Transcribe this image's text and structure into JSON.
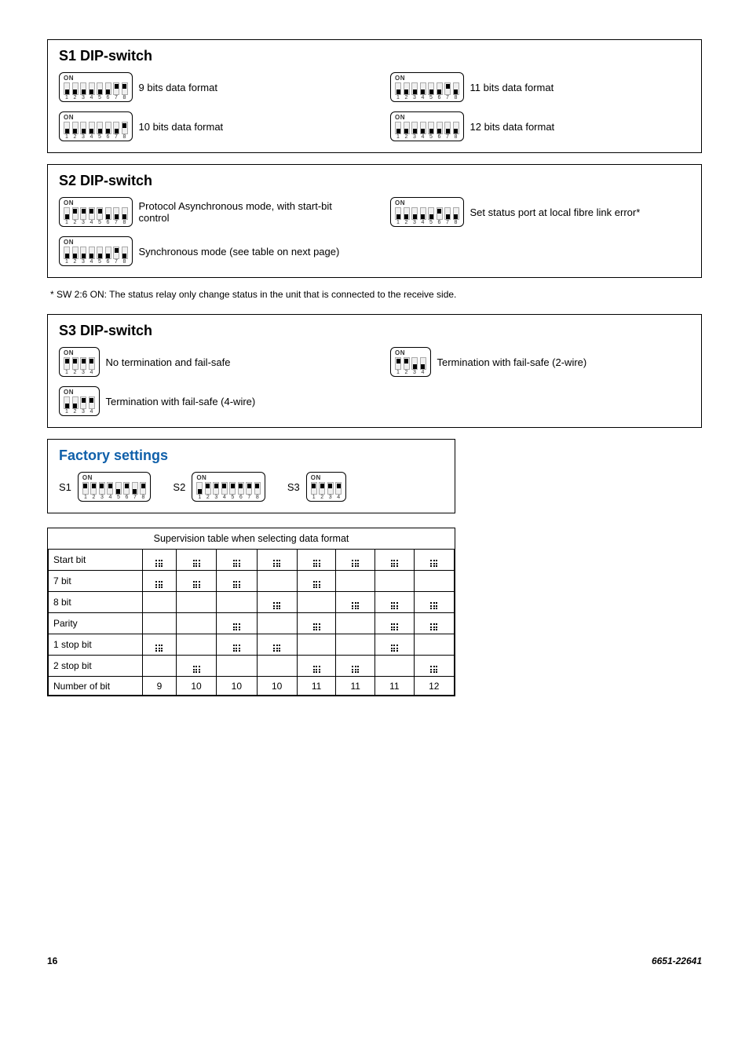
{
  "s1": {
    "title": "S1 DIP-switch",
    "items": [
      {
        "label": "9 bits data format",
        "switches": [
          0,
          0,
          0,
          0,
          0,
          0,
          1,
          1
        ]
      },
      {
        "label": "10 bits data format",
        "switches": [
          0,
          0,
          0,
          0,
          0,
          0,
          0,
          1
        ]
      },
      {
        "label": "11 bits data format",
        "switches": [
          0,
          0,
          0,
          0,
          0,
          0,
          1,
          0
        ]
      },
      {
        "label": "12 bits data format",
        "switches": [
          0,
          0,
          0,
          0,
          0,
          0,
          0,
          0
        ]
      }
    ]
  },
  "s2": {
    "title": "S2 DIP-switch",
    "items": [
      {
        "label": "Protocol Asynchronous mode, with start-bit control",
        "switches": [
          0,
          1,
          1,
          1,
          1,
          0,
          0,
          0
        ]
      },
      {
        "label": "Synchronous mode (see table on next page)",
        "switches": [
          0,
          0,
          0,
          0,
          0,
          0,
          1,
          0
        ]
      },
      {
        "label": "Set status port at local fibre link error*",
        "switches": [
          0,
          0,
          0,
          0,
          0,
          1,
          0,
          0
        ]
      }
    ]
  },
  "footnote": "* SW 2:6 ON: The status relay only change status in the unit that is connected to the receive side.",
  "s3": {
    "title": "S3 DIP-switch",
    "items": [
      {
        "label": "No termination and fail-safe",
        "switches": [
          1,
          1,
          1,
          1
        ]
      },
      {
        "label": "Termination with fail-safe (4-wire)",
        "switches": [
          0,
          0,
          1,
          1
        ]
      },
      {
        "label": "Termination with fail-safe (2-wire)",
        "switches": [
          1,
          1,
          0,
          0
        ]
      }
    ]
  },
  "factory": {
    "title": "Factory settings",
    "s1_label": "S1",
    "s2_label": "S2",
    "s3_label": "S3",
    "s1": [
      1,
      1,
      1,
      1,
      0,
      1,
      0,
      1
    ],
    "s2": [
      0,
      1,
      1,
      1,
      1,
      1,
      1,
      1
    ],
    "s3": [
      1,
      1,
      1,
      1
    ]
  },
  "supervision": {
    "caption": "Supervision table when selecting data format",
    "rows": [
      {
        "name": "Start bit",
        "cells": [
          1,
          1,
          1,
          1,
          1,
          1,
          1,
          1
        ]
      },
      {
        "name": "7 bit",
        "cells": [
          1,
          1,
          1,
          0,
          1,
          0,
          0,
          0
        ]
      },
      {
        "name": "8 bit",
        "cells": [
          0,
          0,
          0,
          1,
          0,
          1,
          1,
          1
        ]
      },
      {
        "name": "Parity",
        "cells": [
          0,
          0,
          1,
          0,
          1,
          0,
          1,
          1
        ]
      },
      {
        "name": "1 stop bit",
        "cells": [
          1,
          0,
          1,
          1,
          0,
          0,
          1,
          0
        ]
      },
      {
        "name": "2 stop bit",
        "cells": [
          0,
          1,
          0,
          0,
          1,
          1,
          0,
          1
        ]
      },
      {
        "name": "Number of bit",
        "cells": [
          "9",
          "10",
          "10",
          "10",
          "11",
          "11",
          "11",
          "12"
        ]
      }
    ]
  },
  "footer": {
    "page": "16",
    "doc": "6651-22641"
  }
}
